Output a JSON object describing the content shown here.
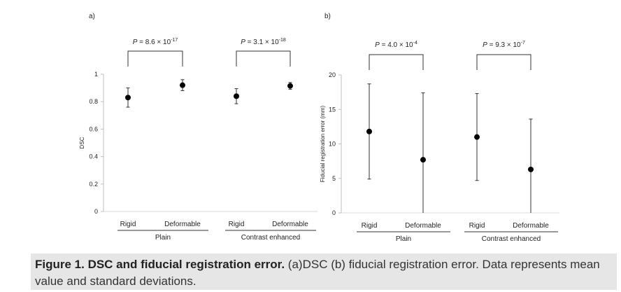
{
  "chart_data": [
    {
      "type": "scatter",
      "panel_label": "a)",
      "ylabel": "DSC",
      "ylim": [
        0,
        1
      ],
      "yticks": [
        "0",
        "0.2",
        "0.4",
        "0.6",
        "0.8",
        "1"
      ],
      "ytick_values": [
        0,
        0.2,
        0.4,
        0.6,
        0.8,
        1
      ],
      "categories": [
        "Rigid",
        "Deformable",
        "Rigid",
        "Deformable"
      ],
      "groups": [
        "Plain",
        "Contrast enhanced"
      ],
      "values": [
        0.83,
        0.92,
        0.84,
        0.915
      ],
      "errors": [
        0.07,
        0.04,
        0.055,
        0.025
      ],
      "annotations": [
        {
          "p": "P",
          "eq": " = 8.6",
          "times": " × 10",
          "exp": "-17",
          "pair": [
            0,
            1
          ]
        },
        {
          "p": "P",
          "eq": " = 3.1",
          "times": " × 10",
          "exp": "-18",
          "pair": [
            2,
            3
          ]
        }
      ]
    },
    {
      "type": "scatter",
      "panel_label": "b)",
      "ylabel": "Fiducial registration error (mm)",
      "ylim": [
        0,
        20
      ],
      "yticks": [
        "0",
        "5",
        "10",
        "15",
        "20"
      ],
      "ytick_values": [
        0,
        5,
        10,
        15,
        20
      ],
      "categories": [
        "Rigid",
        "Deformable",
        "Rigid",
        "Deformable"
      ],
      "groups": [
        "Plain",
        "Contrast enhanced"
      ],
      "values": [
        11.8,
        7.7,
        11.0,
        6.3
      ],
      "errors": [
        6.9,
        9.7,
        6.3,
        7.3
      ],
      "annotations": [
        {
          "p": "P",
          "eq": " = 4.0",
          "times": " × 10",
          "exp": "-4",
          "pair": [
            0,
            1
          ]
        },
        {
          "p": "P",
          "eq": " = 9.3",
          "times": " × 10",
          "exp": "-7",
          "pair": [
            2,
            3
          ]
        }
      ]
    }
  ],
  "caption": {
    "bold": "Figure 1. DSC and fiducial registration error.",
    "text": " (a)DSC (b) fiducial registration error. Data represents mean value and standard deviations."
  }
}
